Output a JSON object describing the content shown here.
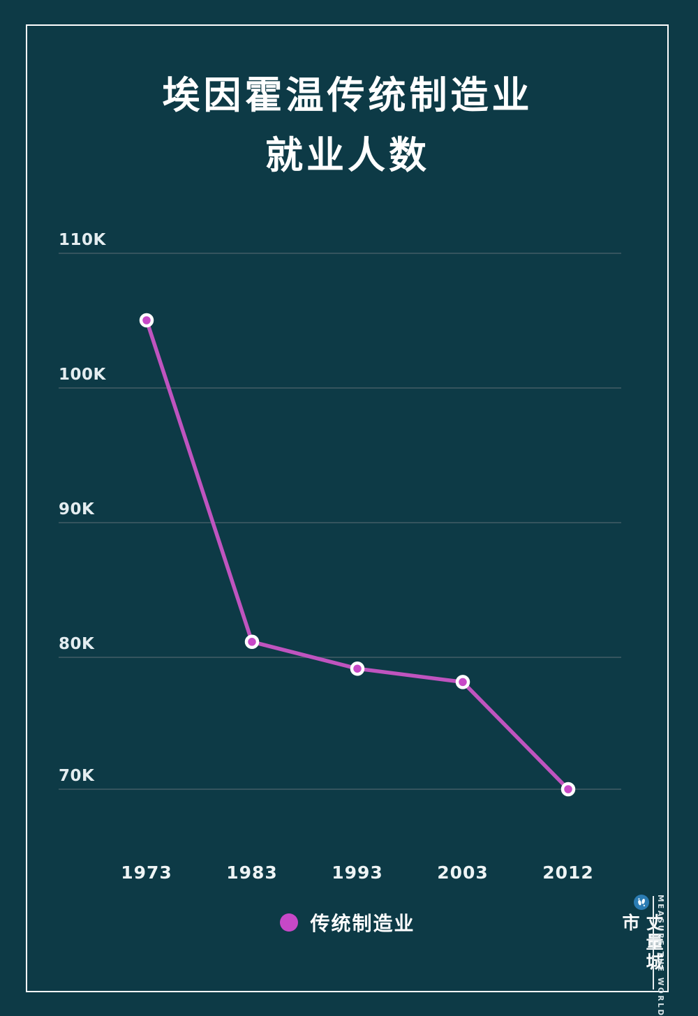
{
  "title": {
    "line1": "埃因霍温传统制造业",
    "line2": "就业人数"
  },
  "chart_data": {
    "type": "line",
    "title": "埃因霍温传统制造业 就业人数",
    "categories": [
      "1973",
      "1983",
      "1993",
      "2003",
      "2012"
    ],
    "series": [
      {
        "name": "传统制造业",
        "values": [
          105000,
          81000,
          79000,
          78000,
          70000
        ]
      }
    ],
    "y_ticks": [
      "110K",
      "100K",
      "90K",
      "80K",
      "70K"
    ],
    "y_gridline_values": [
      110000,
      100000,
      90000,
      80000,
      70000
    ],
    "ylim": [
      66000,
      113000
    ],
    "xlabel": "",
    "ylabel": "",
    "grid": true,
    "legend_position": "bottom",
    "line_color": "#bf54bf",
    "point_color": "#c748c7",
    "point_ring_color": "#ffffff",
    "background_color": "#0d3a46",
    "gridline_color": "#35545e"
  },
  "legend": {
    "label": "传统制造业"
  },
  "watermark": {
    "name_cn": "丈量城市",
    "name_en": "MEASURE THE WORLD",
    "logo_color": "#2b7cb3"
  }
}
